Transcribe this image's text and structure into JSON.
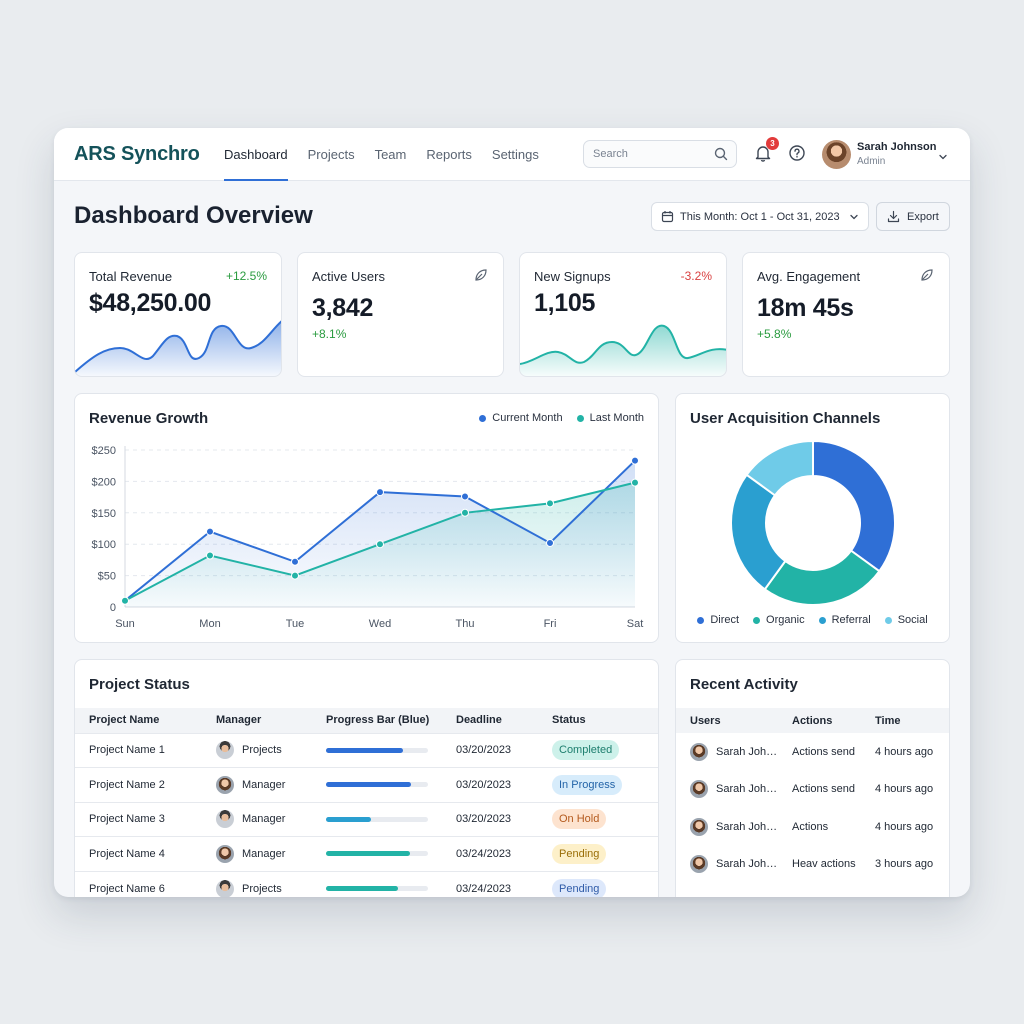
{
  "app": {
    "brand": "ARS Synchro"
  },
  "nav": [
    {
      "label": "Dashboard",
      "active": true
    },
    {
      "label": "Projects",
      "active": false
    },
    {
      "label": "Team",
      "active": false
    },
    {
      "label": "Reports",
      "active": false
    },
    {
      "label": "Settings",
      "active": false
    }
  ],
  "search": {
    "placeholder": "Search",
    "icon": "search-icon"
  },
  "notifications": {
    "count": "3",
    "icon": "bell-icon"
  },
  "help": {
    "icon": "help-icon"
  },
  "user": {
    "name": "Sarah Johnson",
    "role": "Admin"
  },
  "page": {
    "title": "Dashboard Overview",
    "date_range": "This Month: Oct 1 - Oct 31, 2023",
    "export_label": "Export"
  },
  "kpis": [
    {
      "label": "Total Revenue",
      "value": "$48,250.00",
      "delta": "+12.5%",
      "trend": "up"
    },
    {
      "label": "Active Users",
      "value": "3,842",
      "delta": "+8.1%",
      "trend": "up",
      "icon": "leaf-icon"
    },
    {
      "label": "New Signups",
      "value": "1,105",
      "delta": "-3.2%",
      "trend": "down"
    },
    {
      "label": "Avg. Engagement",
      "value": "18m 45s",
      "delta": "+5.8%",
      "trend": "up",
      "icon": "leaf-icon"
    }
  ],
  "colors": {
    "blue": "#2f6fd6",
    "teal": "#22b3a6",
    "positive": "#2a9b3f",
    "negative": "#d94141",
    "direct": "#2f6fd6",
    "organic": "#22b3a6",
    "referral": "#2a9fd0",
    "social": "#6fcbe8"
  },
  "chart_data": [
    {
      "type": "line",
      "title": "Revenue Growth",
      "categories": [
        "Sun",
        "Mon",
        "Tue",
        "Wed",
        "Thu",
        "Fri",
        "Sat"
      ],
      "ylim": [
        0,
        250
      ],
      "yticks": [
        "0",
        "$50",
        "$100",
        "$150",
        "$200",
        "$250"
      ],
      "grid": true,
      "legend": "top-right",
      "series": [
        {
          "name": "Current Month",
          "values": [
            10,
            120,
            72,
            183,
            176,
            102,
            233
          ]
        },
        {
          "name": "Last Month",
          "values": [
            10,
            82,
            50,
            100,
            150,
            165,
            198
          ]
        }
      ]
    },
    {
      "type": "pie",
      "title": "User Acquisition Channels",
      "legend": "bottom",
      "labels": [
        "Direct",
        "Organic",
        "Referral",
        "Social"
      ],
      "values": [
        35,
        25,
        25,
        15
      ]
    }
  ],
  "projects": {
    "title": "Project Status",
    "columns": [
      "Project Name",
      "Manager",
      "Progress Bar (Blue)",
      "Deadline",
      "Status"
    ],
    "rows": [
      {
        "name": "Project Name 1",
        "manager": "Projects",
        "progress": 0.75,
        "color": "#2f6fd6",
        "deadline": "03/20/2023",
        "status": "Completed",
        "status_class": "completed",
        "avatar": "m"
      },
      {
        "name": "Project Name 2",
        "manager": "Manager",
        "progress": 0.83,
        "color": "#2f6fd6",
        "deadline": "03/20/2023",
        "status": "In Progress",
        "status_class": "progress",
        "avatar": "f"
      },
      {
        "name": "Project Name 3",
        "manager": "Manager",
        "progress": 0.44,
        "color": "#2a9fd0",
        "deadline": "03/20/2023",
        "status": "On Hold",
        "status_class": "hold",
        "avatar": "m"
      },
      {
        "name": "Project Name 4",
        "manager": "Manager",
        "progress": 0.82,
        "color": "#22b3a6",
        "deadline": "03/24/2023",
        "status": "Pending",
        "status_class": "pending",
        "avatar": "f"
      },
      {
        "name": "Project Name 6",
        "manager": "Projects",
        "progress": 0.71,
        "color": "#22b3a6",
        "deadline": "03/24/2023",
        "status": "Pending",
        "status_class": "pending2",
        "avatar": "m"
      }
    ]
  },
  "activity": {
    "title": "Recent Activity",
    "columns": [
      "Users",
      "Actions",
      "Time"
    ],
    "rows": [
      {
        "user": "Sarah Joh…",
        "action": "Actions send",
        "time": "4 hours ago"
      },
      {
        "user": "Sarah Joh…",
        "action": "Actions send",
        "time": "4 hours ago"
      },
      {
        "user": "Sarah Joh…",
        "action": "Actions",
        "time": "4 hours ago"
      },
      {
        "user": "Sarah Joh…",
        "action": "Heav actions",
        "time": "3 hours ago"
      }
    ]
  }
}
